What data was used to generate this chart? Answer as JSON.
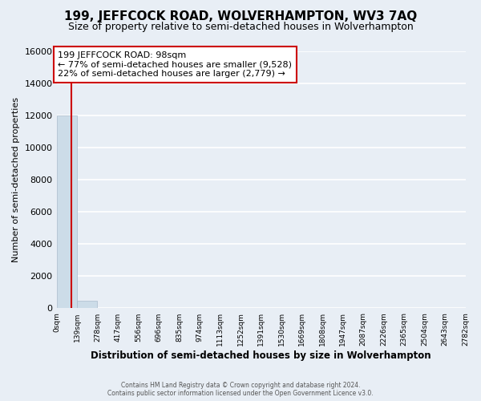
{
  "title": "199, JEFFCOCK ROAD, WOLVERHAMPTON, WV3 7AQ",
  "subtitle": "Size of property relative to semi-detached houses in Wolverhampton",
  "xlabel": "Distribution of semi-detached houses by size in Wolverhampton",
  "ylabel": "Number of semi-detached properties",
  "bin_edges": [
    0,
    139,
    278,
    417,
    556,
    696,
    835,
    974,
    1113,
    1252,
    1391,
    1530,
    1669,
    1808,
    1947,
    2087,
    2226,
    2365,
    2504,
    2643,
    2782
  ],
  "bar_heights": [
    12000,
    480,
    45,
    18,
    10,
    7,
    5,
    4,
    3,
    2,
    2,
    1,
    1,
    1,
    1,
    1,
    1,
    1,
    0,
    0
  ],
  "bar_color": "#ccdce8",
  "bar_edge_color": "#aabbcc",
  "property_size": 98,
  "annotation_title": "199 JEFFCOCK ROAD: 98sqm",
  "annotation_line1": "← 77% of semi-detached houses are smaller (9,528)",
  "annotation_line2": "22% of semi-detached houses are larger (2,779) →",
  "vline_color": "#cc0000",
  "vline_x": 98,
  "annotation_box_color": "#ffffff",
  "annotation_box_edge": "#cc0000",
  "tick_labels": [
    "0sqm",
    "139sqm",
    "278sqm",
    "417sqm",
    "556sqm",
    "696sqm",
    "835sqm",
    "974sqm",
    "1113sqm",
    "1252sqm",
    "1391sqm",
    "1530sqm",
    "1669sqm",
    "1808sqm",
    "1947sqm",
    "2087sqm",
    "2226sqm",
    "2365sqm",
    "2504sqm",
    "2643sqm",
    "2782sqm"
  ],
  "ylim": [
    0,
    16000
  ],
  "yticks": [
    0,
    2000,
    4000,
    6000,
    8000,
    10000,
    12000,
    14000,
    16000
  ],
  "footer_line1": "Contains HM Land Registry data © Crown copyright and database right 2024.",
  "footer_line2": "Contains public sector information licensed under the Open Government Licence v3.0.",
  "background_color": "#e8eef5",
  "plot_bg_color": "#e8eef5",
  "grid_color": "#ffffff",
  "title_fontsize": 11,
  "subtitle_fontsize": 9
}
